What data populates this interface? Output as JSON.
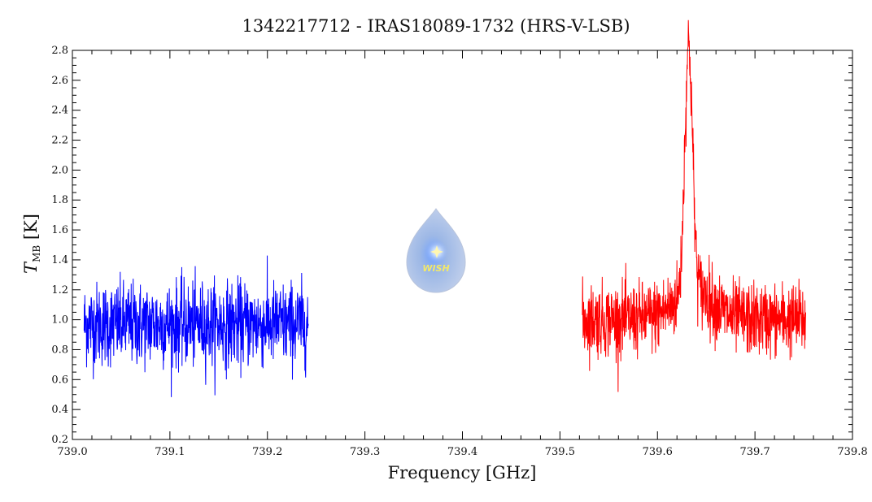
{
  "chart_data": {
    "type": "line",
    "title": "1342217712 - IRAS18089-1732 (HRS-V-LSB)",
    "xlabel": "Frequency [GHz]",
    "ylabel_main": "T",
    "ylabel_sub": "MB",
    "ylabel_unit": " [K]",
    "xlim": [
      739.0,
      739.8
    ],
    "ylim": [
      0.2,
      2.8
    ],
    "x_ticks": [
      "739.0",
      "739.1",
      "739.2",
      "739.3",
      "739.4",
      "739.5",
      "739.6",
      "739.7",
      "739.8"
    ],
    "y_ticks": [
      "0.2",
      "0.4",
      "0.6",
      "0.8",
      "1.0",
      "1.2",
      "1.4",
      "1.6",
      "1.8",
      "2.0",
      "2.2",
      "2.4",
      "2.6",
      "2.8"
    ],
    "grid": false,
    "series": [
      {
        "color": "#0000ff",
        "x_range": [
          739.012,
          739.242
        ],
        "baseline": 0.97,
        "noise": 0.14,
        "features": []
      },
      {
        "color": "#ff0000",
        "x_range": [
          739.523,
          739.752
        ],
        "baseline": 1.0,
        "noise": 0.12,
        "features": [
          {
            "center": 739.632,
            "peak": 2.65,
            "width": 0.004
          },
          {
            "center": 739.632,
            "peak": 1.35,
            "width": 0.02
          },
          {
            "center": 739.645,
            "peak": 1.25,
            "width": 0.015
          }
        ]
      }
    ]
  },
  "logo": {
    "text": "WISH"
  }
}
